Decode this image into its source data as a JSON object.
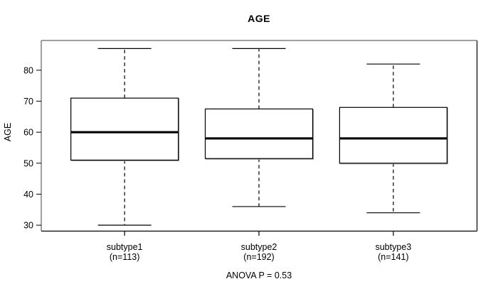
{
  "title": "AGE",
  "annotation": "ANOVA P = 0.53",
  "colors": {
    "background": "#ffffff",
    "frame_topleft": "#808080",
    "frame_bottomright": "#000000",
    "box_border": "#000000",
    "box_fill": "#ffffff",
    "box_shadow": "#9a9a9a",
    "median": "#000000",
    "whisker": "#000000",
    "text": "#000000"
  },
  "chart_data": {
    "type": "boxplot",
    "title": "AGE",
    "xlabel": "",
    "ylabel": "AGE",
    "annotation": "ANOVA P = 0.53",
    "grid": "off",
    "legend": "none",
    "y_ticks": [
      30,
      40,
      50,
      60,
      70,
      80
    ],
    "ylim": [
      28.2,
      89.6
    ],
    "categories": [
      "subtype1",
      "subtype2",
      "subtype3"
    ],
    "groups": [
      {
        "label": "subtype1",
        "sublabel": "(n=113)",
        "n": 113,
        "lower_whisker": 30,
        "q1": 51,
        "median": 60,
        "q3": 71,
        "upper_whisker": 87
      },
      {
        "label": "subtype2",
        "sublabel": "(n=192)",
        "n": 192,
        "lower_whisker": 36,
        "q1": 51.5,
        "median": 58,
        "q3": 67.5,
        "upper_whisker": 87
      },
      {
        "label": "subtype3",
        "sublabel": "(n=141)",
        "n": 141,
        "lower_whisker": 34,
        "q1": 50,
        "median": 58,
        "q3": 68,
        "upper_whisker": 82
      }
    ]
  }
}
